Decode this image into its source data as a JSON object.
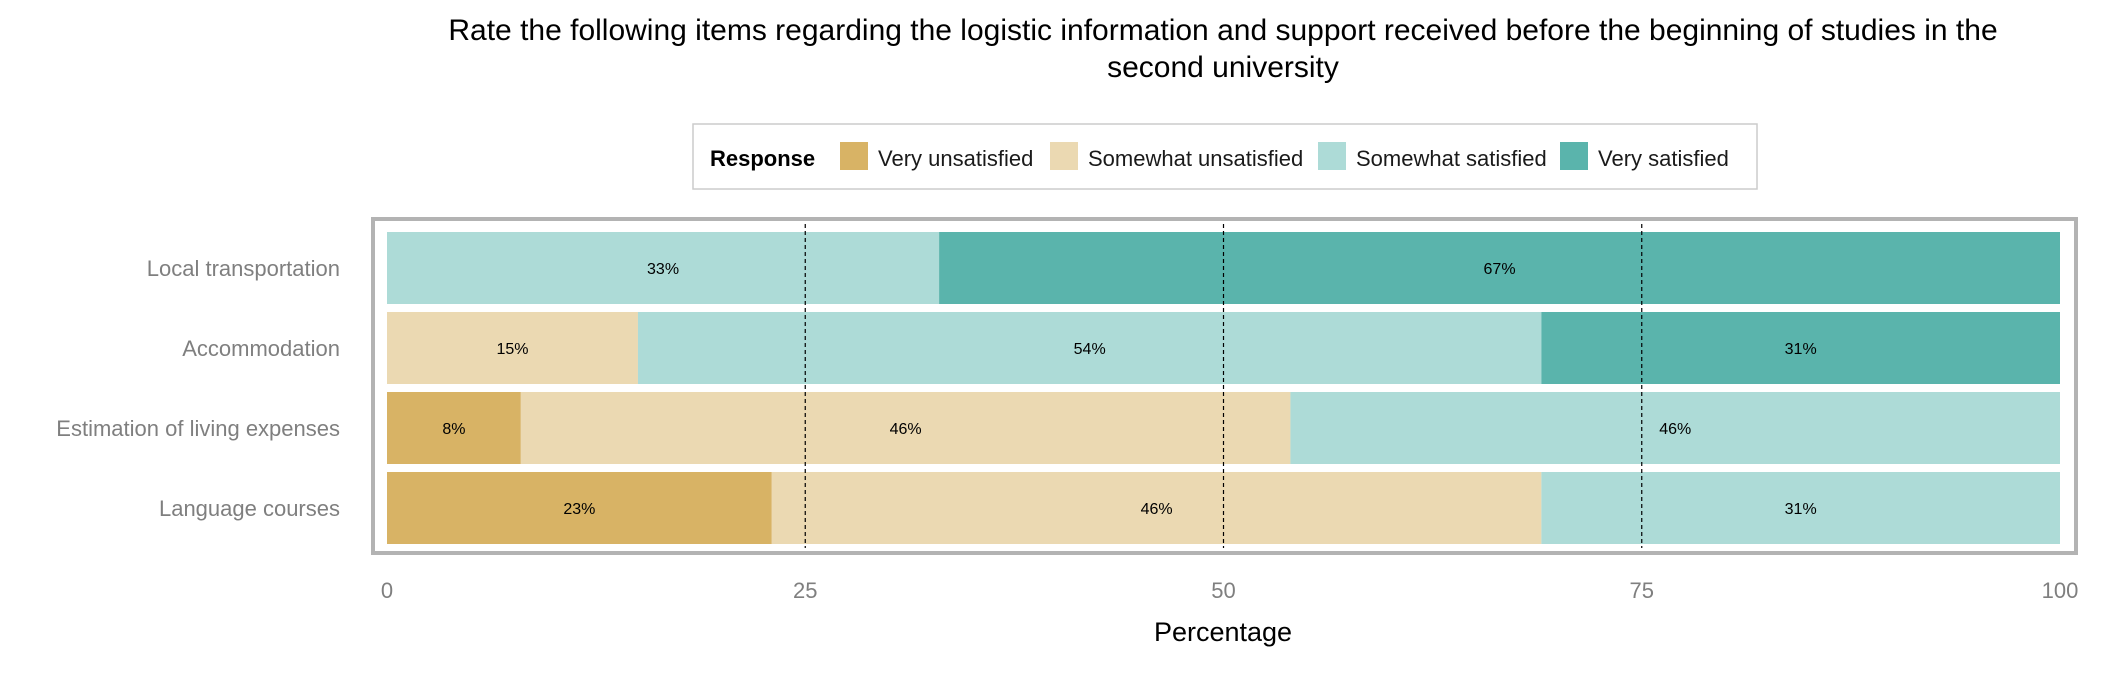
{
  "chart_data": {
    "type": "bar",
    "orientation": "horizontal",
    "stacked": true,
    "title_lines": [
      "Rate the following items regarding the logistic information and support received before the beginning of studies in the",
      "second university"
    ],
    "xlabel": "Percentage",
    "ylabel": "",
    "xlim": [
      0,
      100
    ],
    "x_ticks": [
      0,
      25,
      50,
      75,
      100
    ],
    "x_tick_labels": [
      "0",
      "25",
      "50",
      "75",
      "100"
    ],
    "reference_lines": [
      25,
      50,
      75
    ],
    "legend": {
      "title": "Response",
      "position": "top"
    },
    "categories": [
      "Local transportation",
      "Accommodation",
      "Estimation of living expenses",
      "Language courses"
    ],
    "series": [
      {
        "name": "Very unsatisfied",
        "color": "#d8b365",
        "values": [
          0,
          0,
          8,
          23
        ],
        "labels": [
          "",
          "",
          "8%",
          "23%"
        ]
      },
      {
        "name": "Somewhat unsatisfied",
        "color": "#ebd9b2",
        "values": [
          0,
          15,
          46,
          46
        ],
        "labels": [
          "",
          "15%",
          "46%",
          "46%"
        ]
      },
      {
        "name": "Somewhat satisfied",
        "color": "#addbd7",
        "values": [
          33,
          54,
          46,
          31
        ],
        "labels": [
          "33%",
          "54%",
          "46%",
          "31%"
        ]
      },
      {
        "name": "Very satisfied",
        "color": "#5ab4ac",
        "values": [
          67,
          31,
          0,
          0
        ],
        "labels": [
          "67%",
          "31%",
          "",
          ""
        ]
      }
    ]
  }
}
